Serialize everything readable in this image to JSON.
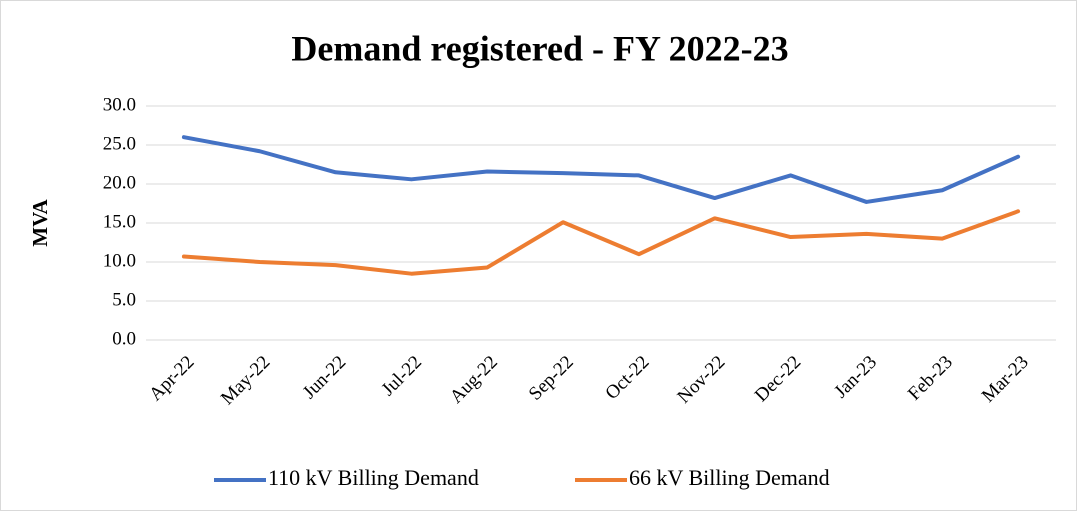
{
  "chart_data": {
    "type": "line",
    "title": "Demand registered - FY 2022-23",
    "y_label": "MVA",
    "categories": [
      "Apr-22",
      "May-22",
      "Jun-22",
      "Jul-22",
      "Aug-22",
      "Sep-22",
      "Oct-22",
      "Nov-22",
      "Dec-22",
      "Jan-23",
      "Feb-23",
      "Mar-23"
    ],
    "series": [
      {
        "name": "110 kV Billing Demand",
        "color": "#4472c4",
        "values": [
          26.0,
          24.2,
          21.5,
          20.6,
          21.6,
          21.4,
          21.1,
          18.2,
          21.1,
          17.7,
          19.2,
          23.5
        ]
      },
      {
        "name": "66 kV Billing Demand",
        "color": "#ed7d31",
        "values": [
          10.7,
          10.0,
          9.6,
          8.5,
          9.3,
          15.1,
          11.0,
          15.6,
          13.2,
          13.6,
          13.0,
          16.5
        ]
      }
    ],
    "ylim": [
      0,
      30
    ],
    "yticks": [
      {
        "value": 0,
        "label": "0.0"
      },
      {
        "value": 5,
        "label": "5.0"
      },
      {
        "value": 10,
        "label": "10.0"
      },
      {
        "value": 15,
        "label": "15.0"
      },
      {
        "value": 20,
        "label": "20.0"
      },
      {
        "value": 25,
        "label": "25.0"
      },
      {
        "value": 30,
        "label": "30.0"
      }
    ],
    "grid": true,
    "legend": "bottom"
  }
}
